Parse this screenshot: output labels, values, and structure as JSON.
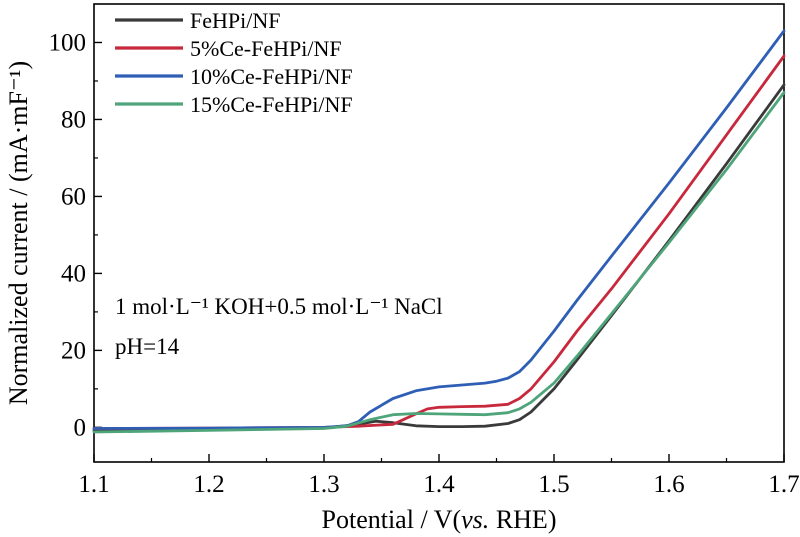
{
  "chart_data": {
    "type": "line",
    "xlabel_main": "Potential / V(",
    "xlabel_italic": "vs.",
    "xlabel_tail": " RHE)",
    "ylabel": "Normalized current / (mA·mF⁻¹)",
    "xlim": [
      1.1,
      1.7
    ],
    "ylim": [
      -9,
      110
    ],
    "x_ticks": [
      1.1,
      1.2,
      1.3,
      1.4,
      1.5,
      1.6,
      1.7
    ],
    "x_tick_labels": [
      "1.1",
      "1.2",
      "1.3",
      "1.4",
      "1.5",
      "1.6",
      "1.7"
    ],
    "y_ticks": [
      0,
      20,
      40,
      60,
      80,
      100
    ],
    "y_tick_labels": [
      "0",
      "20",
      "40",
      "60",
      "80",
      "100"
    ],
    "grid": false,
    "legend_position": "top-left",
    "annotations": [
      "1 mol·L⁻¹ KOH+0.5 mol·L⁻¹ NaCl",
      "pH=14"
    ],
    "series": [
      {
        "name": "FeHPi/NF",
        "color": "#3a3a3a",
        "x": [
          1.1,
          1.2,
          1.3,
          1.33,
          1.345,
          1.36,
          1.38,
          1.4,
          1.42,
          1.44,
          1.46,
          1.47,
          1.48,
          1.5,
          1.52,
          1.55,
          1.6,
          1.65,
          1.7
        ],
        "y": [
          -0.8,
          -0.5,
          -0.2,
          0.8,
          1.6,
          1.2,
          0.4,
          0.2,
          0.2,
          0.3,
          1.0,
          2.0,
          4.0,
          10.0,
          17.5,
          29.0,
          48.5,
          68.5,
          89.0
        ]
      },
      {
        "name": "5%Ce-FeHPi/NF",
        "color": "#c8283c",
        "x": [
          1.1,
          1.2,
          1.3,
          1.33,
          1.36,
          1.38,
          1.39,
          1.4,
          1.42,
          1.44,
          1.46,
          1.47,
          1.48,
          1.5,
          1.52,
          1.55,
          1.6,
          1.65,
          1.7
        ],
        "y": [
          -0.3,
          -0.2,
          0.0,
          0.3,
          0.8,
          3.5,
          4.8,
          5.2,
          5.4,
          5.5,
          6.0,
          7.5,
          10.0,
          17.0,
          25.0,
          36.0,
          55.5,
          76.0,
          96.5
        ]
      },
      {
        "name": "10%Ce-FeHPi/NF",
        "color": "#2f5fb5",
        "x": [
          1.1,
          1.2,
          1.3,
          1.32,
          1.33,
          1.34,
          1.36,
          1.38,
          1.4,
          1.42,
          1.44,
          1.45,
          1.46,
          1.47,
          1.48,
          1.5,
          1.52,
          1.55,
          1.6,
          1.65,
          1.7
        ],
        "y": [
          -0.3,
          -0.2,
          0.0,
          0.4,
          1.5,
          4.0,
          7.5,
          9.5,
          10.5,
          11.0,
          11.5,
          12.0,
          12.8,
          14.5,
          17.5,
          25.0,
          33.0,
          44.5,
          63.5,
          83.0,
          103.0
        ]
      },
      {
        "name": "15%Ce-FeHPi/NF",
        "color": "#4fa57a",
        "x": [
          1.1,
          1.2,
          1.3,
          1.32,
          1.34,
          1.36,
          1.38,
          1.4,
          1.42,
          1.44,
          1.46,
          1.47,
          1.48,
          1.5,
          1.52,
          1.55,
          1.6,
          1.65,
          1.7
        ],
        "y": [
          -1.2,
          -0.8,
          -0.3,
          0.3,
          2.0,
          3.3,
          3.6,
          3.5,
          3.4,
          3.3,
          3.8,
          4.8,
          6.5,
          11.5,
          18.5,
          29.5,
          48.0,
          67.0,
          87.0
        ]
      }
    ]
  }
}
